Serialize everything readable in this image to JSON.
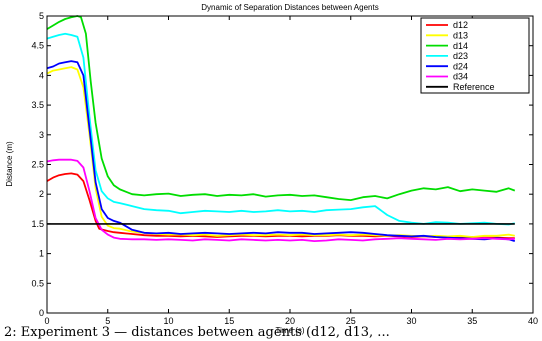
{
  "chart_data": {
    "type": "line",
    "title": "Dynamic of Separation Distances between Agents",
    "xlabel": "Time (s)",
    "ylabel": "Distance (m)",
    "xlim": [
      0,
      40
    ],
    "ylim": [
      0,
      5
    ],
    "xticks": [
      "0",
      "5",
      "10",
      "15",
      "20",
      "25",
      "30",
      "35",
      "40"
    ],
    "yticks": [
      "0",
      "0.5",
      "1",
      "1.5",
      "2",
      "2.5",
      "3",
      "3.5",
      "4",
      "4.5",
      "5"
    ],
    "grid": false,
    "legend_position": "top-right",
    "series": [
      {
        "name": "d12",
        "color": "#ff0000",
        "x": [
          0,
          0.5,
          1,
          1.5,
          2,
          2.5,
          3,
          3.5,
          4,
          4.3,
          4.6,
          5,
          5.5,
          6,
          7,
          8,
          9,
          10,
          11,
          12,
          13,
          14,
          15,
          16,
          17,
          18,
          19,
          20,
          21,
          22,
          23,
          24,
          25,
          26,
          27,
          28,
          29,
          30,
          31,
          32,
          33,
          34,
          35,
          36,
          37,
          38,
          38.5
        ],
        "y": [
          2.22,
          2.28,
          2.32,
          2.34,
          2.35,
          2.33,
          2.22,
          1.9,
          1.55,
          1.42,
          1.4,
          1.38,
          1.36,
          1.35,
          1.33,
          1.31,
          1.3,
          1.3,
          1.29,
          1.3,
          1.29,
          1.28,
          1.29,
          1.3,
          1.3,
          1.29,
          1.3,
          1.3,
          1.29,
          1.3,
          1.3,
          1.31,
          1.3,
          1.3,
          1.29,
          1.3,
          1.29,
          1.28,
          1.29,
          1.28,
          1.28,
          1.27,
          1.28,
          1.27,
          1.27,
          1.26,
          1.26
        ]
      },
      {
        "name": "d13",
        "color": "#ffff00",
        "x": [
          0,
          0.5,
          1,
          1.5,
          2,
          2.5,
          3,
          3.5,
          4,
          4.5,
          5,
          5.5,
          6,
          7,
          8,
          9,
          10,
          11,
          12,
          13,
          14,
          15,
          16,
          17,
          18,
          19,
          20,
          21,
          22,
          23,
          24,
          25,
          26,
          27,
          28,
          29,
          30,
          31,
          32,
          33,
          34,
          35,
          36,
          37,
          38,
          38.5
        ],
        "y": [
          4.03,
          4.08,
          4.1,
          4.12,
          4.14,
          4.1,
          3.8,
          3.0,
          2.1,
          1.62,
          1.47,
          1.43,
          1.42,
          1.37,
          1.35,
          1.33,
          1.32,
          1.32,
          1.31,
          1.32,
          1.3,
          1.31,
          1.32,
          1.31,
          1.31,
          1.32,
          1.31,
          1.32,
          1.31,
          1.31,
          1.32,
          1.31,
          1.32,
          1.31,
          1.3,
          1.31,
          1.3,
          1.29,
          1.3,
          1.29,
          1.3,
          1.28,
          1.3,
          1.3,
          1.32,
          1.3
        ]
      },
      {
        "name": "d14",
        "color": "#00dd00",
        "x": [
          0,
          0.5,
          1,
          1.5,
          2,
          2.5,
          2.8,
          3.2,
          3.6,
          4,
          4.5,
          5,
          5.5,
          6,
          7,
          8,
          9,
          10,
          11,
          12,
          13,
          14,
          15,
          16,
          17,
          18,
          19,
          20,
          21,
          22,
          23,
          24,
          25,
          26,
          27,
          28,
          29,
          30,
          31,
          32,
          33,
          34,
          35,
          36,
          37,
          38,
          38.5
        ],
        "y": [
          4.78,
          4.84,
          4.9,
          4.95,
          4.98,
          5.0,
          4.98,
          4.7,
          3.9,
          3.2,
          2.6,
          2.3,
          2.15,
          2.08,
          2.0,
          1.98,
          2.0,
          2.01,
          1.97,
          1.99,
          2.0,
          1.97,
          1.99,
          1.98,
          2.0,
          1.96,
          1.98,
          1.99,
          1.97,
          1.98,
          1.95,
          1.92,
          1.9,
          1.95,
          1.97,
          1.93,
          2.0,
          2.06,
          2.1,
          2.08,
          2.12,
          2.05,
          2.08,
          2.06,
          2.04,
          2.1,
          2.06
        ]
      },
      {
        "name": "d23",
        "color": "#00ffff",
        "x": [
          0,
          0.5,
          1,
          1.5,
          2,
          2.5,
          3,
          3.5,
          4,
          4.5,
          5,
          5.5,
          6,
          7,
          8,
          9,
          10,
          11,
          12,
          13,
          14,
          15,
          16,
          17,
          18,
          19,
          20,
          21,
          22,
          23,
          24,
          25,
          26,
          27,
          28,
          29,
          30,
          31,
          32,
          33,
          34,
          35,
          36,
          37,
          38,
          38.5
        ],
        "y": [
          4.62,
          4.65,
          4.68,
          4.7,
          4.68,
          4.65,
          4.3,
          3.3,
          2.4,
          2.05,
          1.93,
          1.87,
          1.85,
          1.8,
          1.75,
          1.73,
          1.72,
          1.68,
          1.7,
          1.72,
          1.71,
          1.7,
          1.72,
          1.7,
          1.71,
          1.73,
          1.71,
          1.72,
          1.7,
          1.73,
          1.74,
          1.75,
          1.78,
          1.8,
          1.65,
          1.55,
          1.52,
          1.5,
          1.53,
          1.52,
          1.5,
          1.51,
          1.52,
          1.5,
          1.49,
          1.51
        ]
      },
      {
        "name": "d24",
        "color": "#0000ff",
        "x": [
          0,
          0.5,
          1,
          1.5,
          2,
          2.5,
          3,
          3.5,
          4,
          4.5,
          5,
          5.5,
          6,
          7,
          8,
          9,
          10,
          11,
          12,
          13,
          14,
          15,
          16,
          17,
          18,
          19,
          20,
          21,
          22,
          23,
          24,
          25,
          26,
          27,
          28,
          29,
          30,
          31,
          32,
          33,
          34,
          35,
          36,
          37,
          38,
          38.5
        ],
        "y": [
          4.12,
          4.15,
          4.2,
          4.22,
          4.24,
          4.22,
          4.0,
          3.1,
          2.2,
          1.75,
          1.6,
          1.55,
          1.52,
          1.4,
          1.35,
          1.34,
          1.35,
          1.33,
          1.34,
          1.35,
          1.34,
          1.33,
          1.34,
          1.35,
          1.34,
          1.36,
          1.35,
          1.35,
          1.33,
          1.34,
          1.35,
          1.36,
          1.35,
          1.33,
          1.31,
          1.3,
          1.29,
          1.3,
          1.28,
          1.27,
          1.26,
          1.25,
          1.24,
          1.26,
          1.24,
          1.21
        ]
      },
      {
        "name": "d34",
        "color": "#ff00ff",
        "x": [
          0,
          0.5,
          1,
          1.5,
          2,
          2.5,
          3,
          3.5,
          4,
          4.5,
          5,
          5.5,
          6,
          7,
          8,
          9,
          10,
          11,
          12,
          13,
          14,
          15,
          16,
          17,
          18,
          19,
          20,
          21,
          22,
          23,
          24,
          25,
          26,
          27,
          28,
          29,
          30,
          31,
          32,
          33,
          34,
          35,
          36,
          37,
          38,
          38.5
        ],
        "y": [
          2.55,
          2.57,
          2.58,
          2.58,
          2.58,
          2.56,
          2.45,
          2.05,
          1.6,
          1.4,
          1.32,
          1.27,
          1.25,
          1.24,
          1.24,
          1.23,
          1.24,
          1.23,
          1.22,
          1.24,
          1.23,
          1.22,
          1.24,
          1.23,
          1.22,
          1.23,
          1.22,
          1.23,
          1.21,
          1.22,
          1.24,
          1.23,
          1.22,
          1.24,
          1.25,
          1.26,
          1.25,
          1.24,
          1.23,
          1.25,
          1.24,
          1.25,
          1.26,
          1.25,
          1.24,
          1.25
        ]
      },
      {
        "name": "Reference",
        "color": "#000000",
        "x": [
          0,
          38.5
        ],
        "y": [
          1.5,
          1.5
        ]
      }
    ]
  },
  "caption": "2: Experiment 3 — distances between agents (d12, d13, ..."
}
